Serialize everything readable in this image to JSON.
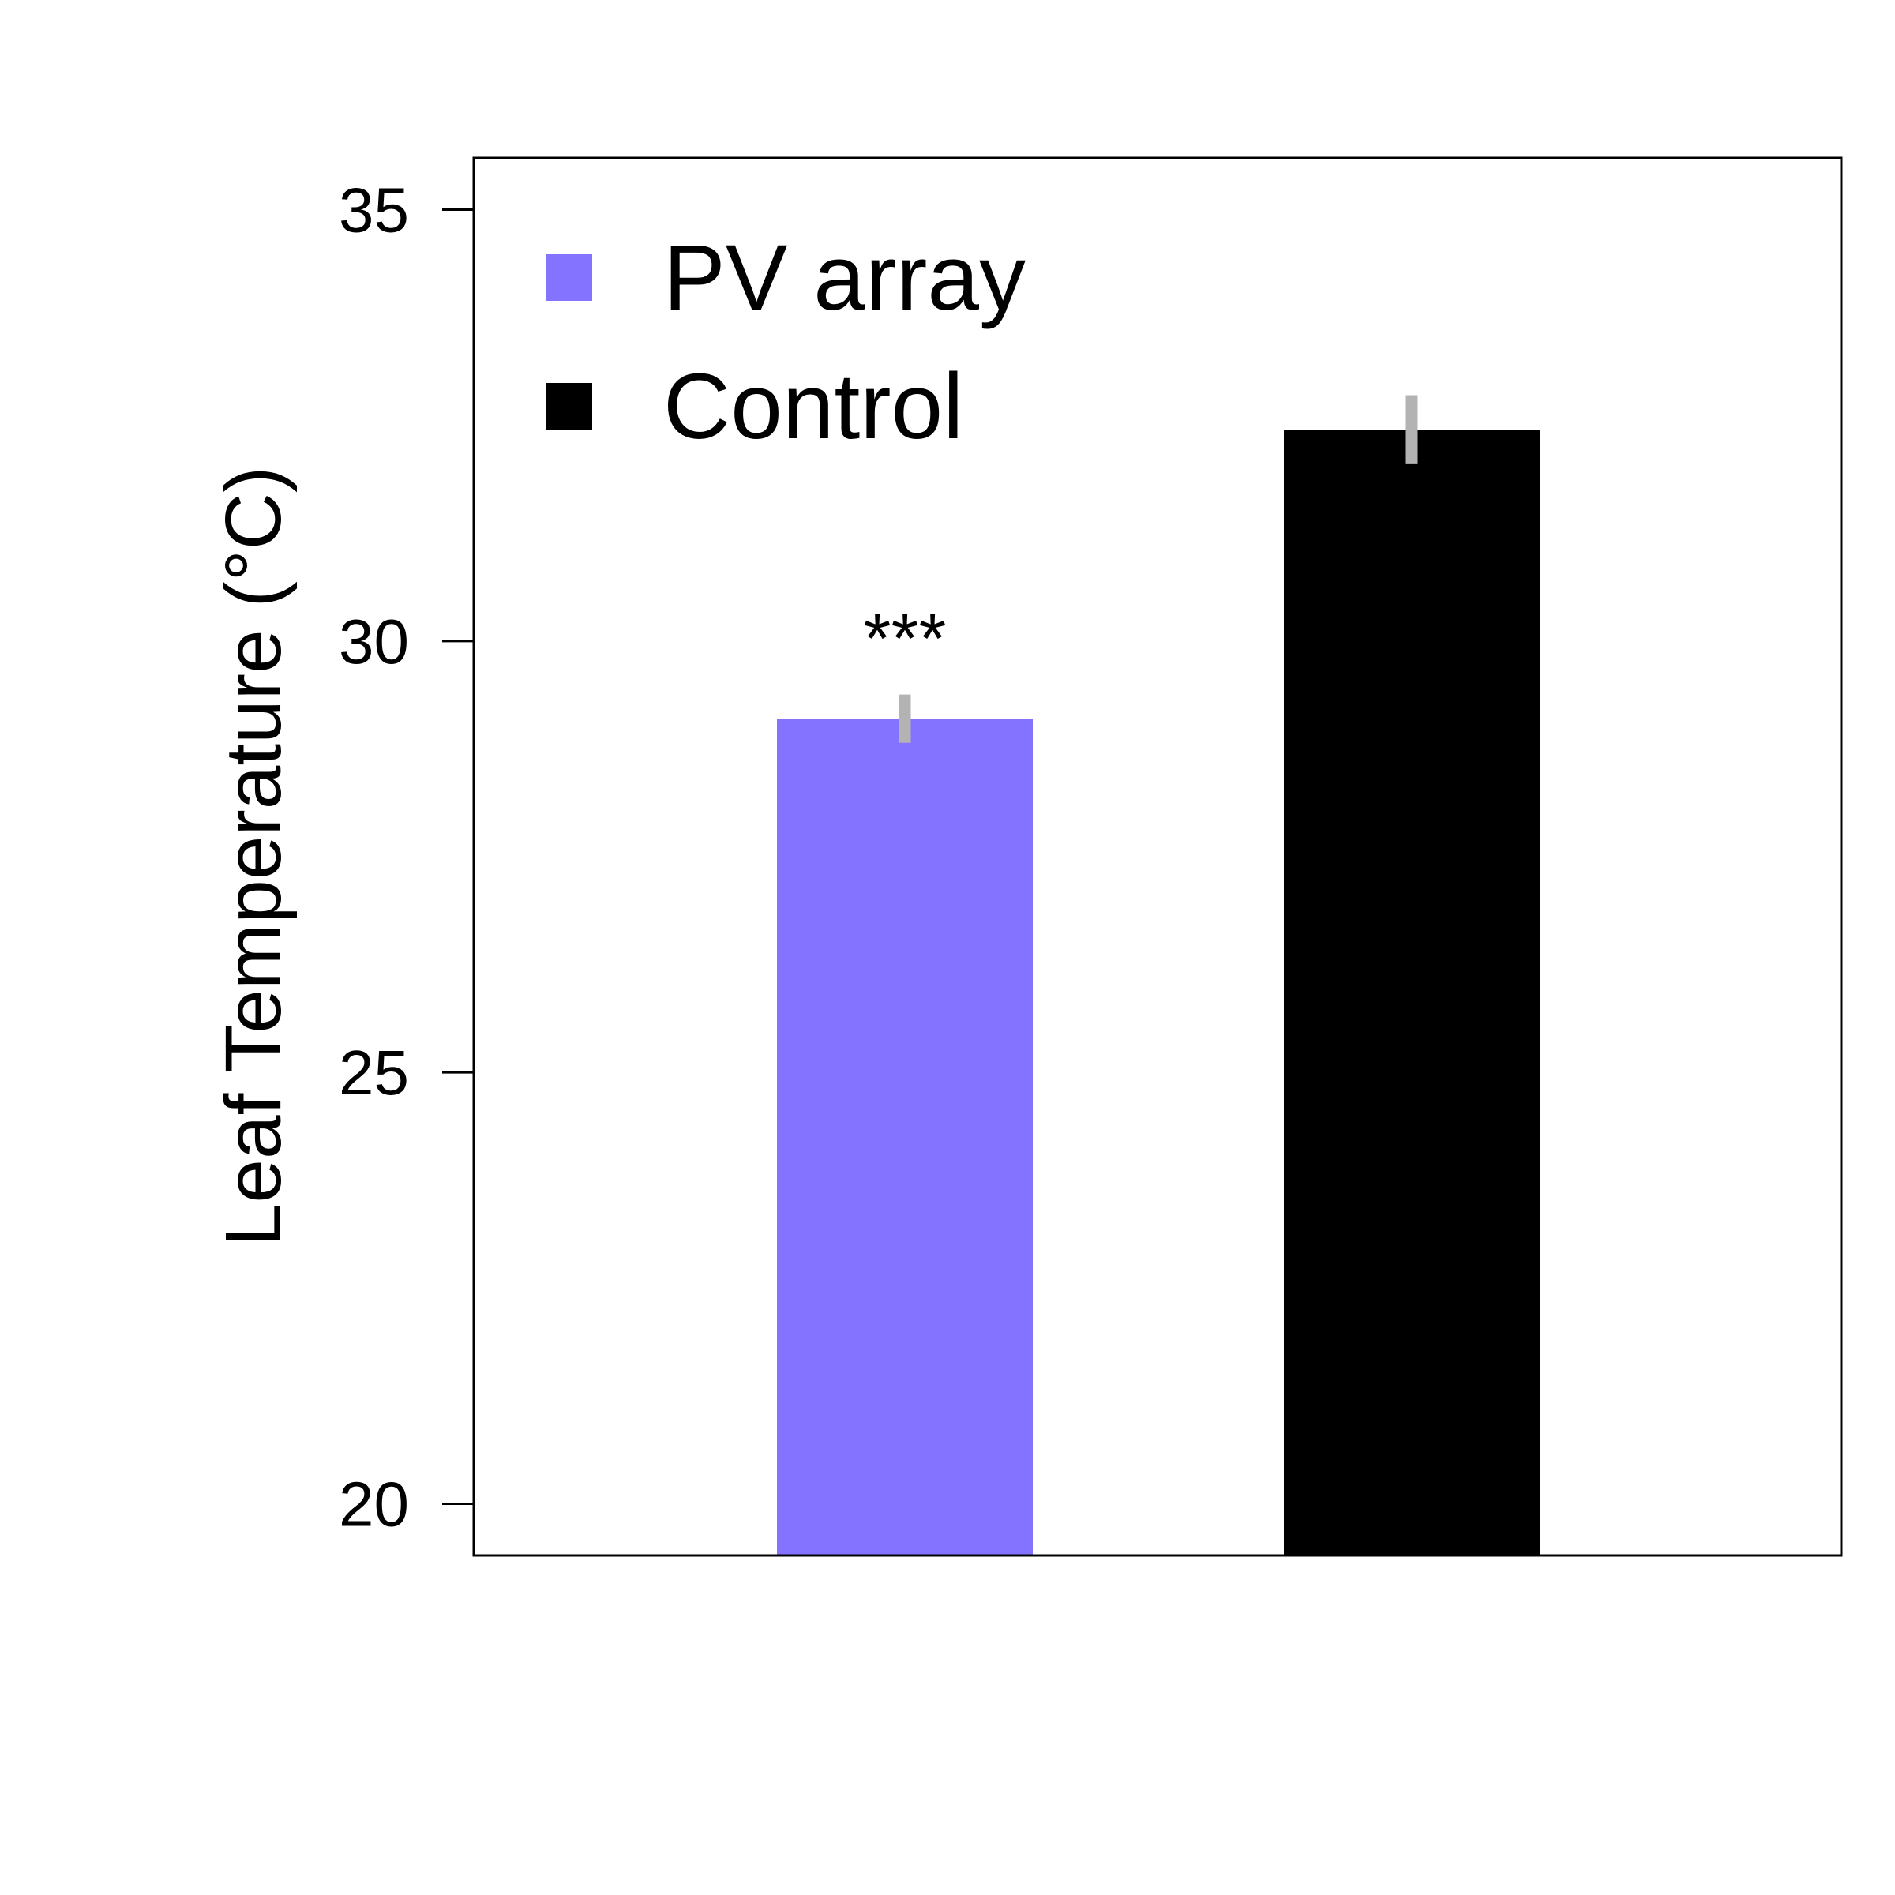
{
  "chart_data": {
    "type": "bar",
    "title": "",
    "xlabel": "",
    "ylabel": "Leaf Temperature (°C)",
    "ylim": [
      19.4,
      35.6
    ],
    "yticks": [
      20,
      25,
      30,
      35
    ],
    "ytick_labels": [
      "20",
      "25",
      "30",
      "35"
    ],
    "grid": false,
    "legend_position": "top-left",
    "categories": [
      "PV array",
      "Control"
    ],
    "series": [
      {
        "name": "Leaf Temperature",
        "values": [
          29.1,
          32.45
        ],
        "errors": [
          0.28,
          0.4
        ],
        "colors": [
          "#8473fe",
          "#000000"
        ]
      }
    ],
    "legend": [
      {
        "label": "PV array",
        "color": "#8473fe"
      },
      {
        "label": "Control",
        "color": "#000000"
      }
    ],
    "annotations": [
      {
        "category": "PV array",
        "text": "***"
      }
    ],
    "error_bar_color": "#b3b3b3"
  }
}
